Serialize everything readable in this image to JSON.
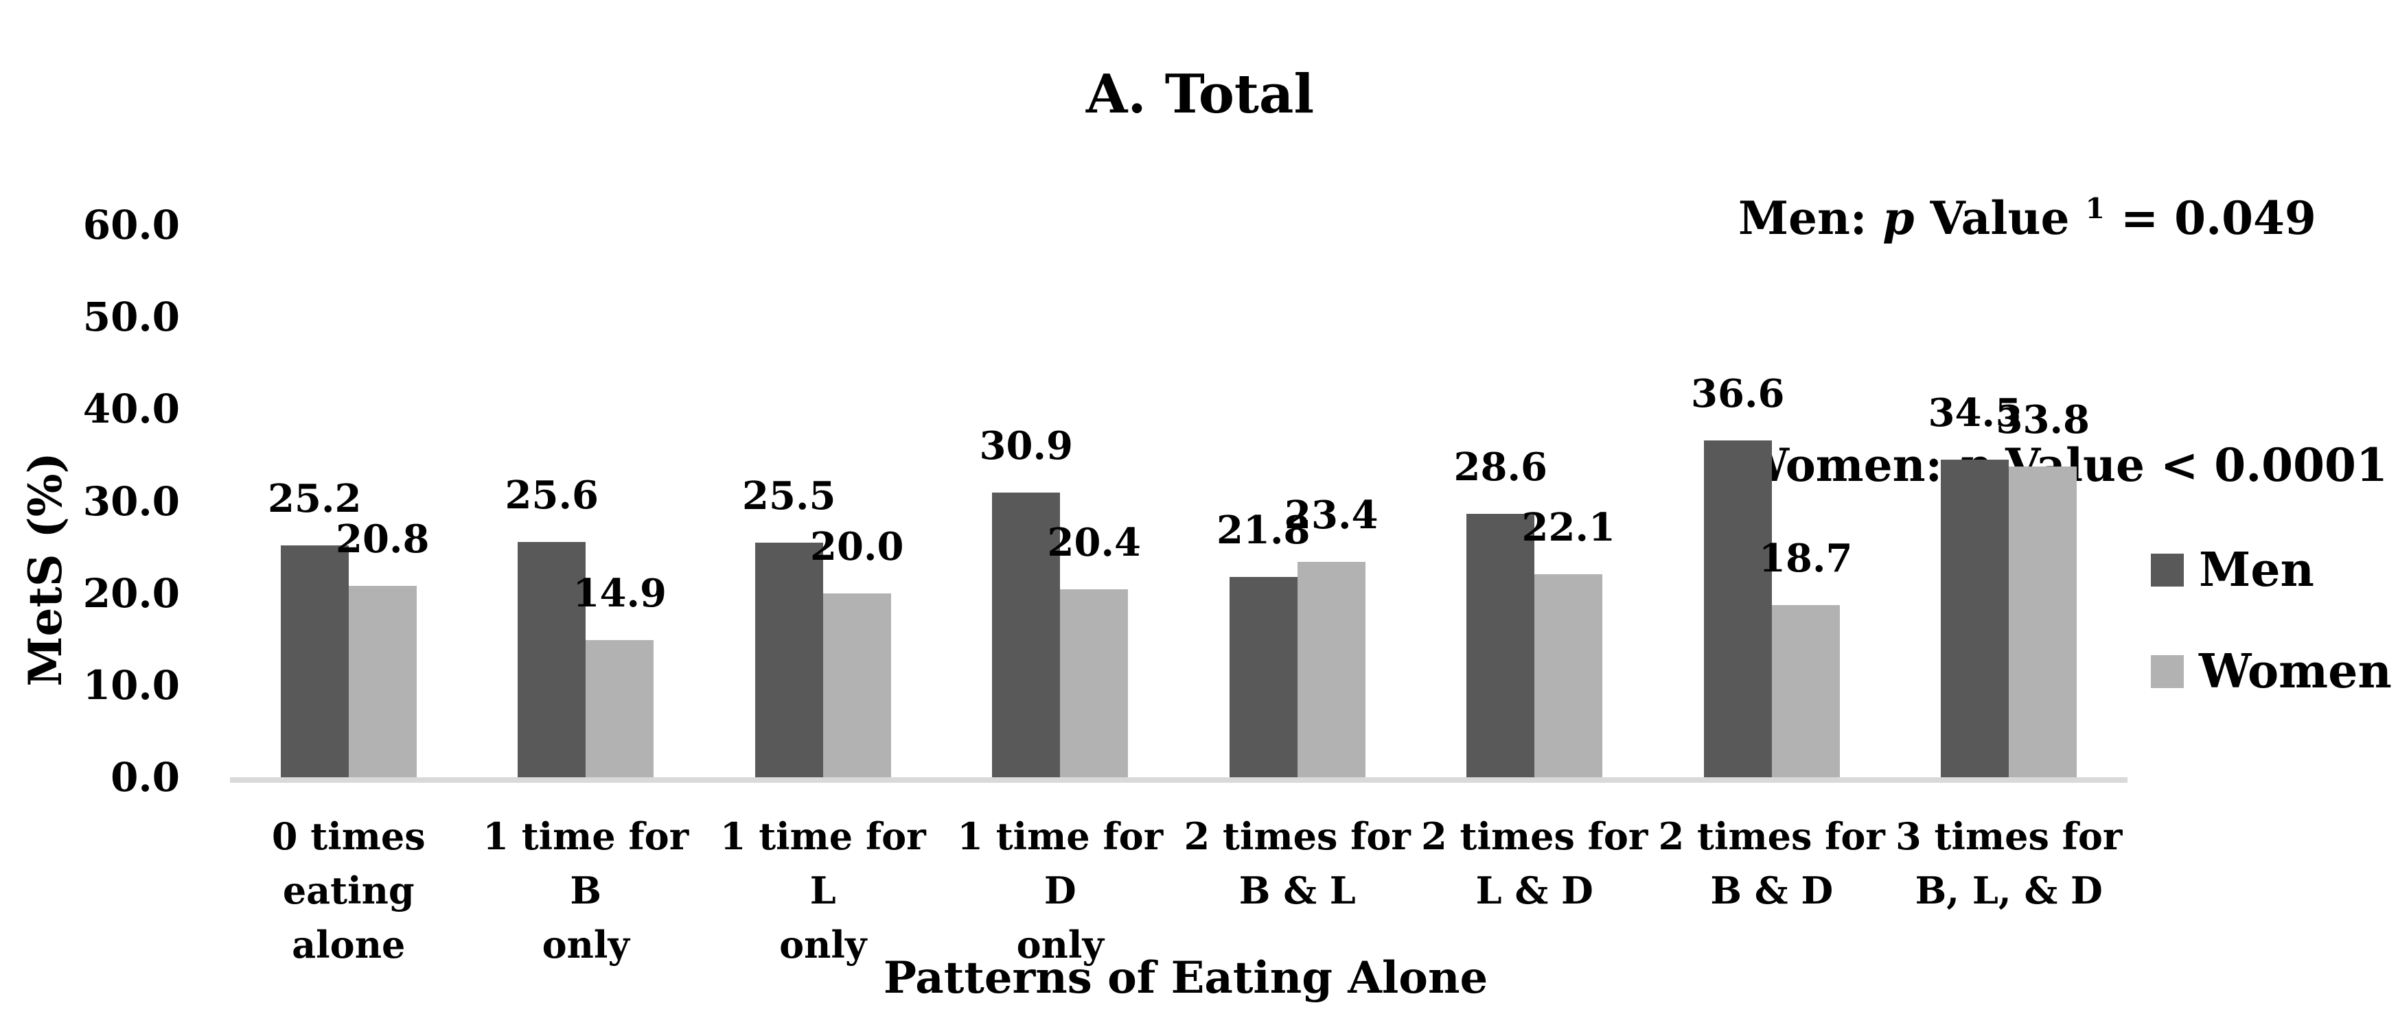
{
  "title": "A. Total",
  "annotations": {
    "men": {
      "prefix": "Men: ",
      "p": "p",
      "mid": " Value ",
      "sup": "1",
      "suffix": " = 0.049"
    },
    "women": {
      "prefix": "Women: ",
      "p": "p",
      "mid": " Value ",
      "suffix": "< 0.0001"
    }
  },
  "chart_data": {
    "type": "bar",
    "title": "A. Total",
    "xlabel": "Patterns of Eating Alone",
    "ylabel": "MetS (%)",
    "ylim": [
      0,
      60
    ],
    "yticks": [
      0,
      10,
      20,
      30,
      40,
      50,
      60
    ],
    "ytick_decimals": 1,
    "grid": false,
    "legend_position": "right",
    "axis_line_color": "#d9d9d9",
    "background_color": "#ffffff",
    "text_color": "#000000",
    "categories": [
      [
        "0 times",
        "eating alone"
      ],
      [
        "1 time for B",
        "only"
      ],
      [
        "1 time for L",
        "only"
      ],
      [
        "1 time for D",
        "only"
      ],
      [
        "2 times for",
        "B & L"
      ],
      [
        "2 times for",
        "L & D"
      ],
      [
        "2 times for",
        "B & D"
      ],
      [
        "3 times for",
        "B, L, & D"
      ]
    ],
    "series": [
      {
        "name": "Men",
        "color": "#595959",
        "values": [
          25.2,
          25.6,
          25.5,
          30.9,
          21.8,
          28.6,
          36.6,
          34.5
        ]
      },
      {
        "name": "Women",
        "color": "#b2b2b2",
        "values": [
          20.8,
          14.9,
          20.0,
          20.4,
          23.4,
          22.1,
          18.7,
          33.8
        ]
      }
    ],
    "data_label_decimals": 1
  }
}
